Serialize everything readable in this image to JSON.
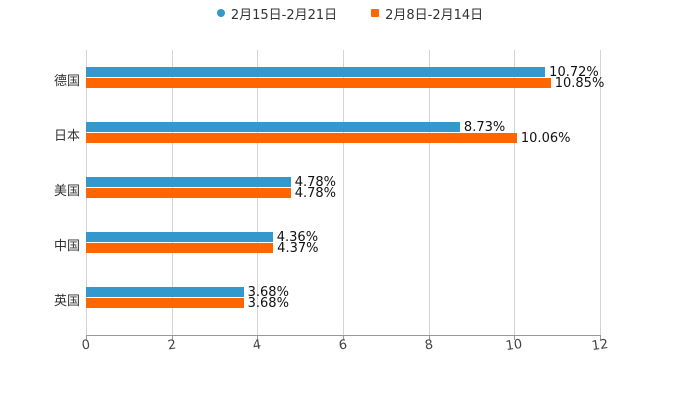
{
  "legend": [
    {
      "label": "2月15日-2月21日",
      "color": "#3399cc",
      "marker": "circle"
    },
    {
      "label": "2月8日-2月14日",
      "color": "#ff6600",
      "marker": "square"
    }
  ],
  "axis": {
    "ticks": [
      "0",
      "2",
      "4",
      "6",
      "8",
      "10",
      "12"
    ]
  },
  "categories": [
    {
      "label": "德国",
      "s1": "10.72%",
      "s2": "10.85%"
    },
    {
      "label": "日本",
      "s1": "8.73%",
      "s2": "10.06%"
    },
    {
      "label": "美国",
      "s1": "4.78%",
      "s2": "4.78%"
    },
    {
      "label": "中国",
      "s1": "4.36%",
      "s2": "4.37%"
    },
    {
      "label": "英国",
      "s1": "3.68%",
      "s2": "3.68%"
    }
  ],
  "chart_data": {
    "type": "bar",
    "orientation": "horizontal",
    "title": "",
    "xlabel": "",
    "ylabel": "",
    "categories": [
      "德国",
      "日本",
      "美国",
      "中国",
      "英国"
    ],
    "series": [
      {
        "name": "2月15日-2月21日",
        "color": "#3399cc",
        "values": [
          10.72,
          8.73,
          4.78,
          4.36,
          3.68
        ]
      },
      {
        "name": "2月8日-2月14日",
        "color": "#ff6600",
        "values": [
          10.85,
          10.06,
          4.78,
          4.37,
          3.68
        ]
      }
    ],
    "xlim": [
      0,
      12
    ],
    "xticks": [
      0,
      2,
      4,
      6,
      8,
      10,
      12
    ],
    "grid": true,
    "legend_position": "top",
    "data_labels": true,
    "value_suffix": "%"
  }
}
